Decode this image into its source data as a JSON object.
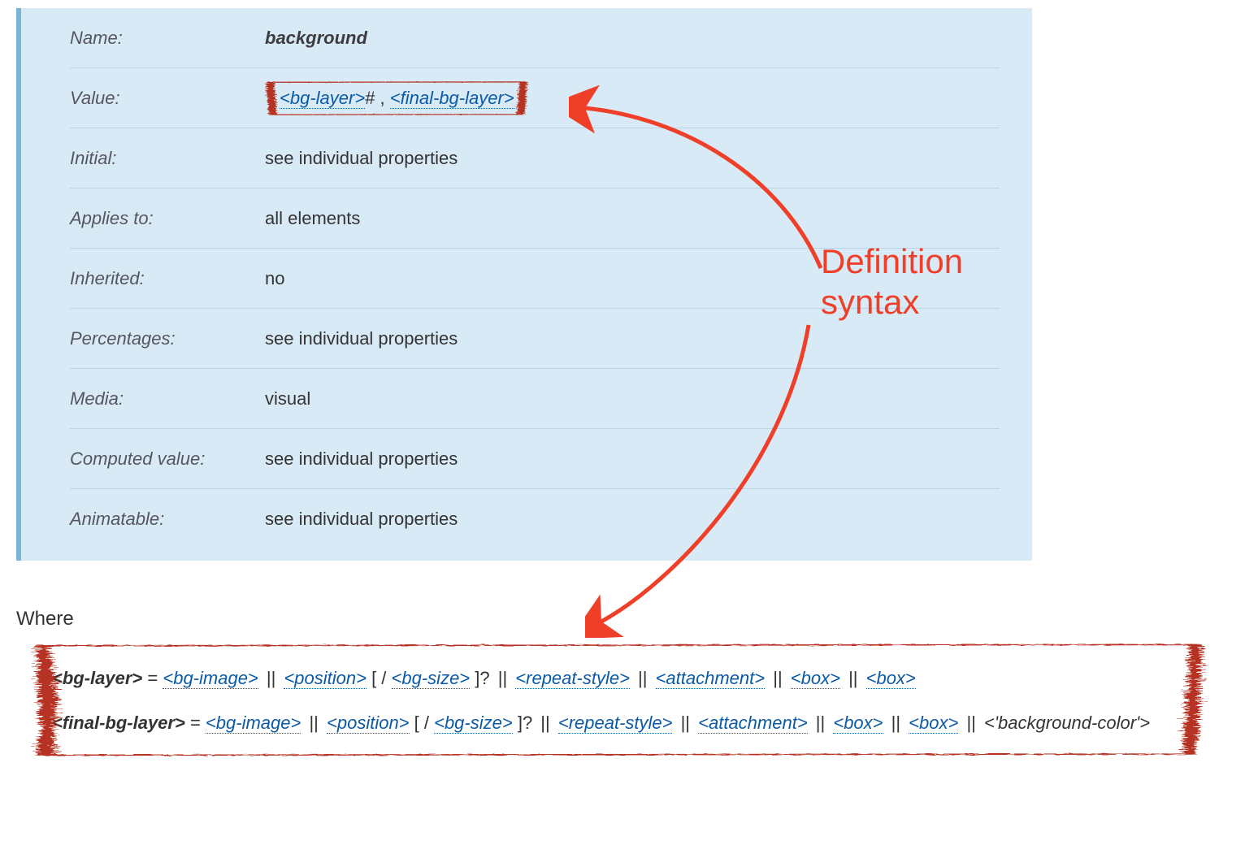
{
  "colors": {
    "info_bg": "#d9eaf7",
    "info_border_left": "#7ab2d8",
    "row_border": "#b9d4e9",
    "link": "#0b5aa6",
    "text": "#333333",
    "label_text": "#555560",
    "annotation": "#ef3f29",
    "rough_border": "#b63224"
  },
  "rough_border_width": 4,
  "info_table": {
    "rows": [
      {
        "label": "Name:",
        "value_type": "bold",
        "value": "background"
      },
      {
        "label": "Value:",
        "value_type": "syntax"
      },
      {
        "label": "Initial:",
        "value_type": "plain",
        "value": "see individual properties"
      },
      {
        "label": "Applies to:",
        "value_type": "plain",
        "value": "all elements"
      },
      {
        "label": "Inherited:",
        "value_type": "plain",
        "value": "no"
      },
      {
        "label": "Percentages:",
        "value_type": "plain",
        "value": "see individual properties"
      },
      {
        "label": "Media:",
        "value_type": "plain",
        "value": "visual"
      },
      {
        "label": "Computed value:",
        "value_type": "plain",
        "value": "see individual properties"
      },
      {
        "label": "Animatable:",
        "value_type": "plain",
        "value": "see individual properties"
      }
    ]
  },
  "value_syntax": {
    "tokens": [
      {
        "t": "link",
        "text": "<bg-layer>"
      },
      {
        "t": "plain",
        "text": "# , "
      },
      {
        "t": "link",
        "text": "<final-bg-layer>"
      }
    ]
  },
  "where_label": "Where",
  "definitions": [
    {
      "head": "<bg-layer>",
      "equals": " = ",
      "tokens": [
        {
          "t": "link",
          "text": "<bg-image>"
        },
        {
          "t": "sep",
          "text": " || "
        },
        {
          "t": "link",
          "text": "<position>"
        },
        {
          "t": "plain",
          "text": " [ / "
        },
        {
          "t": "link",
          "text": "<bg-size>"
        },
        {
          "t": "plain",
          "text": " ]? "
        },
        {
          "t": "sep",
          "text": "|| "
        },
        {
          "t": "link",
          "text": "<repeat-style>"
        },
        {
          "t": "sep",
          "text": " || "
        },
        {
          "t": "link",
          "text": "<attachment>"
        },
        {
          "t": "sep",
          "text": " || "
        },
        {
          "t": "link",
          "text": "<box>"
        },
        {
          "t": "sep",
          "text": " || "
        },
        {
          "t": "link",
          "text": "<box>"
        }
      ]
    },
    {
      "head": "<final-bg-layer>",
      "equals": " = ",
      "tokens": [
        {
          "t": "link",
          "text": "<bg-image>"
        },
        {
          "t": "sep",
          "text": " || "
        },
        {
          "t": "link",
          "text": "<position>"
        },
        {
          "t": "plain",
          "text": " [ / "
        },
        {
          "t": "link",
          "text": "<bg-size>"
        },
        {
          "t": "plain",
          "text": " ]? "
        },
        {
          "t": "sep",
          "text": "|| "
        },
        {
          "t": "link",
          "text": "<repeat-style>"
        },
        {
          "t": "sep",
          "text": " || "
        },
        {
          "t": "link",
          "text": "<attachment>"
        },
        {
          "t": "sep",
          "text": " || "
        },
        {
          "t": "link",
          "text": "<box>"
        },
        {
          "t": "sep",
          "text": " || "
        },
        {
          "t": "link",
          "text": "<box>"
        },
        {
          "t": "sep",
          "text": " || "
        },
        {
          "t": "italic",
          "text": "<'background-color'>"
        }
      ]
    }
  ],
  "annotation": {
    "line1": "Definition",
    "line2": "syntax"
  }
}
